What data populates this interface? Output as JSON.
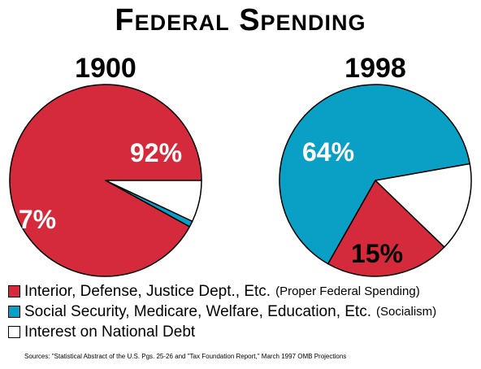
{
  "title": "Federal Spending",
  "chart_data": [
    {
      "type": "pie",
      "title": "1900",
      "slices": [
        {
          "key": "interior",
          "value": 92,
          "label": "92%"
        },
        {
          "key": "social",
          "value": 1,
          "label": "1%"
        },
        {
          "key": "interest",
          "value": 7,
          "label": "7%"
        }
      ]
    },
    {
      "type": "pie",
      "title": "1998",
      "slices": [
        {
          "key": "social",
          "value": 64,
          "label": "64%"
        },
        {
          "key": "interior",
          "value": 21,
          "label": "21%"
        },
        {
          "key": "interest",
          "value": 15,
          "label": "15%"
        }
      ]
    }
  ],
  "colors": {
    "interior": "#d42a3c",
    "social": "#0a9fc4",
    "interest": "#ffffff"
  },
  "legend": [
    {
      "key": "interior",
      "text": "Interior, Defense, Justice Dept., Etc.",
      "note": "(Proper Federal Spending)"
    },
    {
      "key": "social",
      "text": "Social Security, Medicare, Welfare, Education, Etc.",
      "note": "(Socialism)"
    },
    {
      "key": "interest",
      "text": "Interest on National Debt",
      "note": ""
    }
  ],
  "source": "Sources: \"Statistical Abstract of the U.S. Pgs. 25-26 and \"Tax Foundation Report,\" March 1997 OMB Projections"
}
